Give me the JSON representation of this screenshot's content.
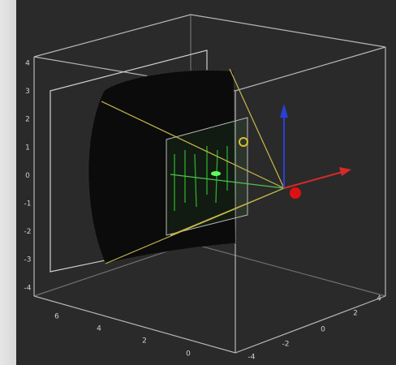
{
  "axes": {
    "vertical_ticks": [
      4,
      3,
      2,
      1,
      0,
      -1,
      -2,
      -3,
      -4
    ],
    "depth_ticks": [
      6,
      4,
      2,
      0
    ],
    "horizontal_ticks": [
      -4,
      -2,
      0,
      2,
      4
    ]
  }
}
